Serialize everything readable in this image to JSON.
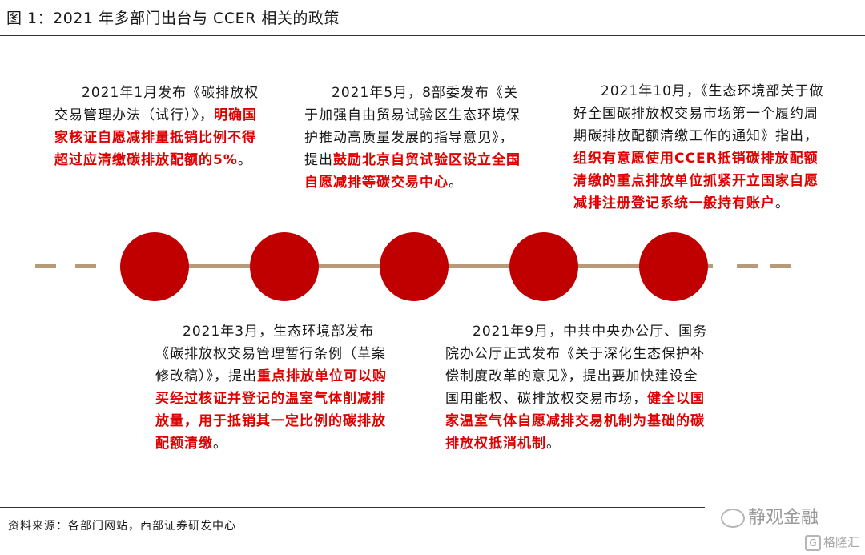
{
  "figure": {
    "title": "图 1：2021 年多部门出台与 CCER 相关的政策"
  },
  "events": [
    {
      "normal": "2021年1月发布《碳排放权交易管理办法（试行）》，",
      "highlight": "明确国家核证自愿减排量抵销比例不得超过应清缴碳排放配额的5%",
      "tail": "。"
    },
    {
      "normal": "2021年3月，生态环境部发布《碳排放权交易管理暂行条例（草案修改稿）》，提出",
      "highlight": "重点排放单位可以购买经过核证并登记的温室气体削减排放量，用于抵销其一定比例的碳排放配额清缴",
      "tail": "。"
    },
    {
      "normal": "2021年5月，8部委发布《关于加强自由贸易试验区生态环境保护推动高质量发展的指导意见》，提出",
      "highlight": "鼓励北京自贸试验区设立全国自愿减排等碳交易中心",
      "tail": "。"
    },
    {
      "normal": "2021年9月，中共中央办公厅、国务院办公厅正式发布《关于深化生态保护补偿制度改革的意见》，提出要加快建设全国用能权、碳排放权交易市场，",
      "highlight": "健全以国家温室气体自愿减排交易机制为基础的碳排放权抵消机制",
      "tail": "。"
    },
    {
      "normal": "2021年10月，《生态环境部关于做好全国碳排放权交易市场第一个履约周期碳排放配额清缴工作的通知》指出，",
      "highlight": "组织有意愿使用CCER抵销碳排放配额清缴的重点排放单位抓紧开立国家自愿减排注册登记系统一般持有账户",
      "tail": "。"
    }
  ],
  "footer": {
    "source": "资料来源：各部门网站，西部证券研发中心",
    "watermark": "静观金融",
    "watermark2": "格隆汇"
  },
  "colors": {
    "node": "#c00000",
    "line": "#b79a7a",
    "highlight": "#e00000"
  }
}
